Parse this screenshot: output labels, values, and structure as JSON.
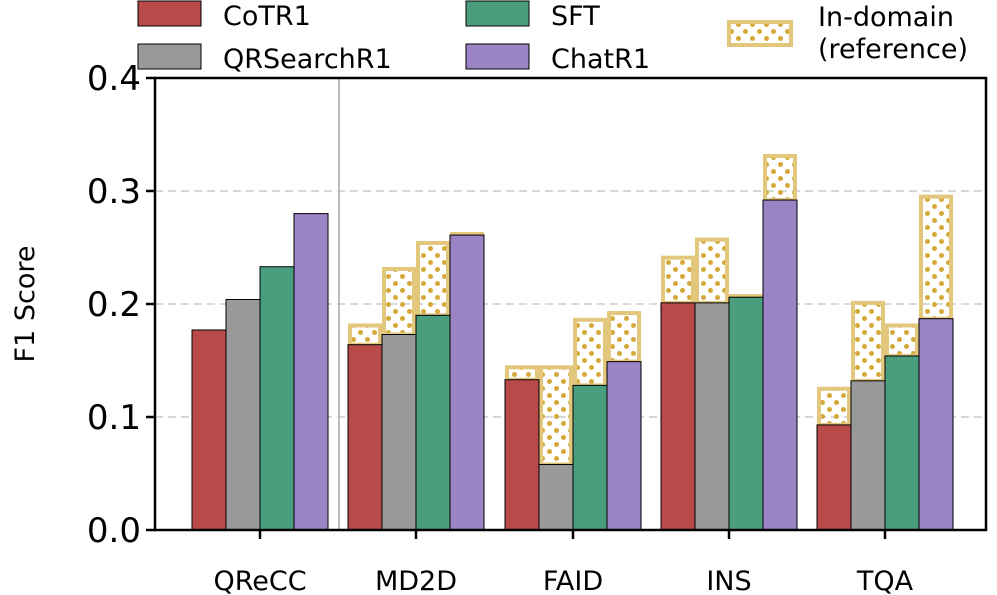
{
  "chart_data": {
    "type": "bar",
    "title": "",
    "xlabel": "",
    "ylabel": "F1 Score",
    "ylim": [
      0.0,
      0.4
    ],
    "yticks": [
      "0.0",
      "0.1",
      "0.2",
      "0.3",
      "0.4"
    ],
    "grid": "y-dashed",
    "categories": [
      "QReCC",
      "MD2D",
      "FAID",
      "INS",
      "TQA"
    ],
    "series": [
      {
        "name": "CoTR1",
        "color": "#b84a4a",
        "values": [
          0.177,
          0.164,
          0.133,
          0.201,
          0.093
        ]
      },
      {
        "name": "QRSearchR1",
        "color": "#999999",
        "values": [
          0.204,
          0.173,
          0.058,
          0.201,
          0.132
        ]
      },
      {
        "name": "SFT",
        "color": "#4a9e7e",
        "values": [
          0.233,
          0.19,
          0.128,
          0.206,
          0.154
        ]
      },
      {
        "name": "ChatR1",
        "color": "#9b84c6",
        "values": [
          0.28,
          0.261,
          0.149,
          0.292,
          0.187
        ]
      }
    ],
    "in_domain_reference": {
      "name_line1": "In-domain",
      "name_line2": "(reference)",
      "color": "#e2c77c",
      "dot_color": "#d4a93a",
      "values": [
        [
          null,
          null,
          null,
          null
        ],
        [
          0.181,
          0.231,
          0.254,
          0.262
        ],
        [
          0.144,
          0.144,
          0.186,
          0.192
        ],
        [
          0.241,
          0.257,
          0.207,
          0.331
        ],
        [
          0.125,
          0.201,
          0.181,
          0.295
        ]
      ]
    },
    "legend": {
      "placement": "top",
      "columns": 3
    }
  }
}
